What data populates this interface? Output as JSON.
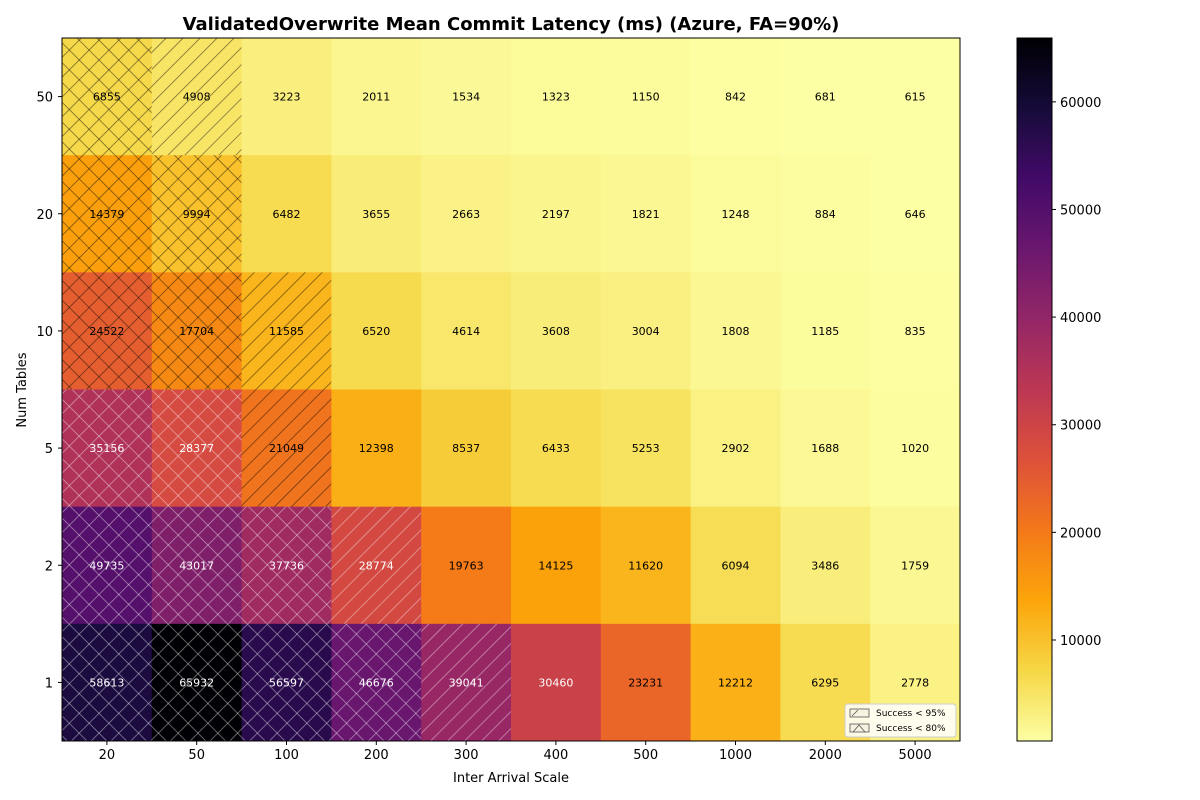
{
  "chart_data": {
    "type": "heatmap",
    "title": "ValidatedOverwrite Mean Commit Latency (ms) (Azure, FA=90%)",
    "xlabel": "Inter Arrival Scale",
    "ylabel": "Num Tables",
    "x_categories": [
      "20",
      "50",
      "100",
      "200",
      "300",
      "400",
      "500",
      "1000",
      "2000",
      "5000"
    ],
    "y_categories": [
      "50",
      "20",
      "10",
      "5",
      "2",
      "1"
    ],
    "values": [
      [
        6855,
        4908,
        3223,
        2011,
        1534,
        1323,
        1150,
        842,
        681,
        615
      ],
      [
        14379,
        9994,
        6482,
        3655,
        2663,
        2197,
        1821,
        1248,
        884,
        646
      ],
      [
        24522,
        17704,
        11585,
        6520,
        4614,
        3608,
        3004,
        1808,
        1185,
        835
      ],
      [
        35156,
        28377,
        21049,
        12398,
        8537,
        6433,
        5253,
        2902,
        1688,
        1020
      ],
      [
        49735,
        43017,
        37736,
        28774,
        19763,
        14125,
        11620,
        6094,
        3486,
        1759
      ],
      [
        58613,
        65932,
        56597,
        46676,
        39041,
        30460,
        23231,
        12212,
        6295,
        2778
      ]
    ],
    "hatch": [
      [
        "x",
        "/",
        "",
        "",
        "",
        "",
        "",
        "",
        "",
        ""
      ],
      [
        "x",
        "x",
        "",
        "",
        "",
        "",
        "",
        "",
        "",
        ""
      ],
      [
        "x",
        "x",
        "/",
        "",
        "",
        "",
        "",
        "",
        "",
        ""
      ],
      [
        "x",
        "x",
        "/",
        "",
        "",
        "",
        "",
        "",
        "",
        ""
      ],
      [
        "x",
        "x",
        "x",
        "/",
        "",
        "",
        "",
        "",
        "",
        ""
      ],
      [
        "x",
        "x",
        "x",
        "x",
        "/",
        "",
        "",
        "",
        "",
        ""
      ]
    ],
    "colormap": "inferno_r",
    "colorbar": {
      "range": [
        615,
        65932
      ],
      "ticks": [
        10000,
        20000,
        30000,
        40000,
        50000,
        60000
      ],
      "tick_labels": [
        "10000",
        "20000",
        "30000",
        "40000",
        "50000",
        "60000"
      ]
    },
    "legend": {
      "placement": "lower-right",
      "entries": [
        {
          "label": "Success < 95%",
          "hatch": "/"
        },
        {
          "label": "Success < 80%",
          "hatch": "x"
        }
      ]
    }
  }
}
